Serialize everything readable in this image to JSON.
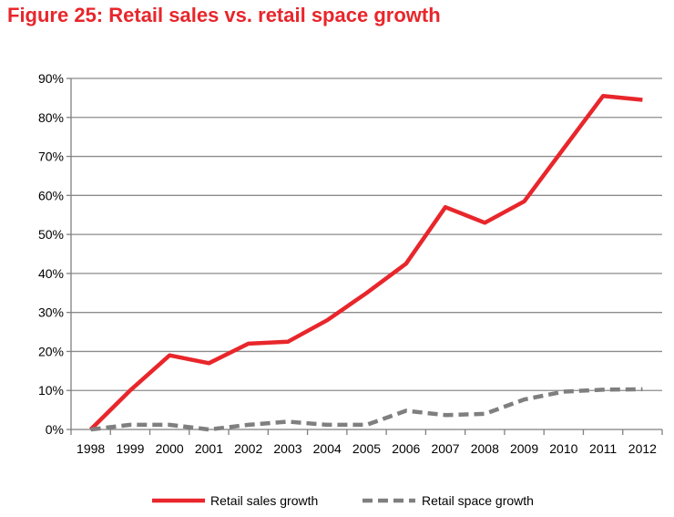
{
  "title": "Figure 25: Retail sales vs. retail space growth",
  "colors": {
    "title": "#e8262b",
    "sales": "#e8262b",
    "space": "#7f7f7f",
    "grid": "#8c8c8c",
    "axis": "#7f7f7f"
  },
  "chart_data": {
    "type": "line",
    "title": "Figure 25: Retail sales vs. retail space growth",
    "xlabel": "",
    "ylabel": "",
    "ylim": [
      0,
      90
    ],
    "yticks": [
      "0%",
      "10%",
      "20%",
      "30%",
      "40%",
      "50%",
      "60%",
      "70%",
      "80%",
      "90%"
    ],
    "ytick_values": [
      0,
      10,
      20,
      30,
      40,
      50,
      60,
      70,
      80,
      90
    ],
    "categories": [
      "1998",
      "1999",
      "2000",
      "2001",
      "2002",
      "2003",
      "2004",
      "2005",
      "2006",
      "2007",
      "2008",
      "2009",
      "2010",
      "2011",
      "2012"
    ],
    "grid": true,
    "legend_position": "bottom",
    "series": [
      {
        "name": "Retail sales growth",
        "style": "solid",
        "color": "#e8262b",
        "values": [
          0,
          10,
          19,
          17,
          22,
          22.5,
          28,
          35,
          42.5,
          57,
          53,
          58.5,
          72,
          85.5,
          84.5
        ]
      },
      {
        "name": "Retail space growth",
        "style": "dashed",
        "color": "#7f7f7f",
        "values": [
          0,
          1.2,
          1.2,
          0,
          1.2,
          2,
          1.2,
          1.2,
          4.8,
          3.7,
          4,
          7.7,
          9.7,
          10.2,
          10.3
        ]
      }
    ]
  }
}
